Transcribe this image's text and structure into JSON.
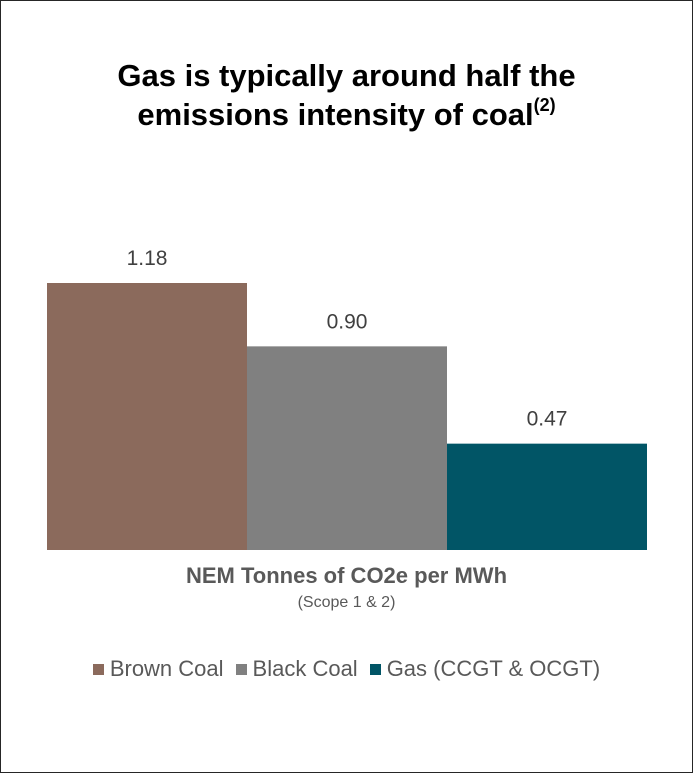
{
  "title": {
    "line1": "Gas is typically around half the",
    "line2": "emissions intensity of coal",
    "superscript": "(2)"
  },
  "chart_data": {
    "type": "bar",
    "title": "Gas is typically around half the emissions intensity of coal(2)",
    "xlabel": "NEM Tonnes of CO2e per MWh",
    "xsublabel": "(Scope 1 & 2)",
    "ylabel": "",
    "ylim": [
      0,
      1.3
    ],
    "grid": false,
    "legend_position": "bottom",
    "categories": [
      "NEM Tonnes of CO2e per MWh"
    ],
    "series": [
      {
        "name": "Brown Coal",
        "values": [
          1.18
        ],
        "label": "1.18",
        "color": "#8B6A5C"
      },
      {
        "name": "Black Coal",
        "values": [
          0.9
        ],
        "label": "0.90",
        "color": "#808080"
      },
      {
        "name": "Gas (CCGT & OCGT)",
        "values": [
          0.47
        ],
        "label": "0.47",
        "color": "#015566"
      }
    ]
  }
}
